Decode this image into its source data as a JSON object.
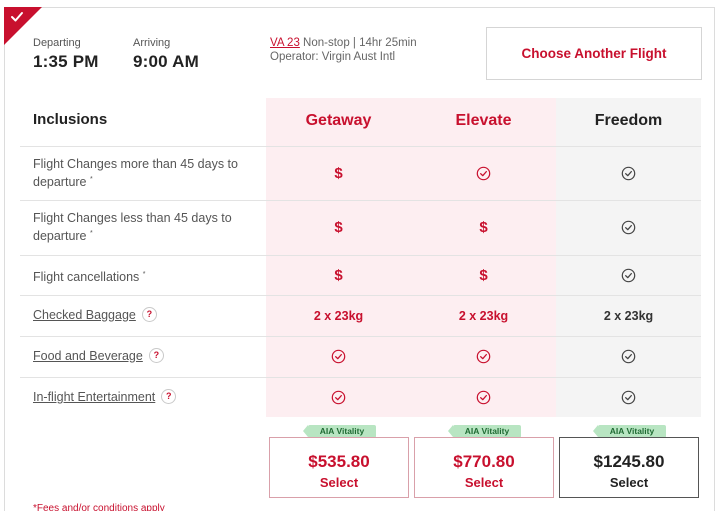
{
  "flight": {
    "departing_label": "Departing",
    "departing_time": "1:35 PM",
    "arriving_label": "Arriving",
    "arriving_time": "9:00 AM",
    "flight_code": "VA 23",
    "flight_details": "Non-stop | 14hr 25min",
    "operator": "Operator: Virgin Aust Intl",
    "choose_another_label": "Choose Another Flight"
  },
  "table": {
    "inclusions_heading": "Inclusions",
    "fares": [
      {
        "name": "Getaway",
        "price": "$535.80",
        "select_label": "Select",
        "badge": "AIA Vitality"
      },
      {
        "name": "Elevate",
        "price": "$770.80",
        "select_label": "Select",
        "badge": "AIA Vitality"
      },
      {
        "name": "Freedom",
        "price": "$1245.80",
        "select_label": "Select",
        "badge": "AIA Vitality"
      }
    ],
    "rows": [
      {
        "label": "Flight Changes more than 45 days to departure",
        "marker": "*",
        "values": [
          "$",
          "check",
          "check"
        ]
      },
      {
        "label": "Flight Changes less than 45 days to departure",
        "marker": "*",
        "values": [
          "$",
          "$",
          "check"
        ]
      },
      {
        "label": "Flight cancellations",
        "marker": "*",
        "values": [
          "$",
          "$",
          "check"
        ]
      },
      {
        "label": "Checked Baggage",
        "values": [
          "2 x 23kg",
          "2 x 23kg",
          "2 x 23kg"
        ]
      },
      {
        "label": "Food and Beverage",
        "values": [
          "check",
          "check",
          "check"
        ]
      },
      {
        "label": "In-flight Entertainment",
        "values": [
          "check",
          "check",
          "check"
        ]
      }
    ],
    "help_icon": "?",
    "footnote": "*Fees and/or conditions apply"
  },
  "colors": {
    "brand_red": "#c8102e",
    "highlight_bg": "#fdeef1",
    "neutral_bg": "#f4f4f4",
    "vitality_green": "#b8e5c2"
  }
}
